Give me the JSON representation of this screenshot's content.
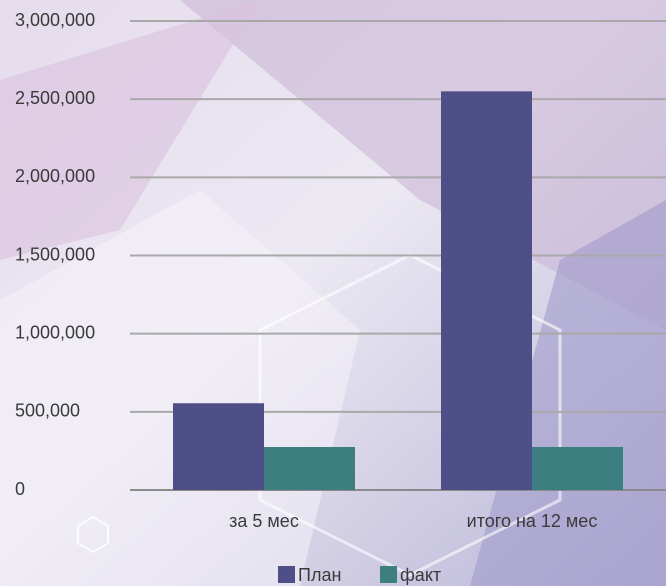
{
  "chart_data": {
    "type": "bar",
    "categories": [
      "за 5 мес",
      "итого на 12 мес"
    ],
    "series": [
      {
        "name": "План",
        "color": "#4f4f88",
        "values": [
          555000,
          2550000
        ]
      },
      {
        "name": "факт",
        "color": "#3d7f80",
        "values": [
          275000,
          275000
        ]
      }
    ],
    "ylim": [
      0,
      3000000
    ],
    "yticks": [
      0,
      {
        "value": 500000,
        "label": "500,000"
      },
      {
        "value": 1000000,
        "label": "1,000,000"
      },
      {
        "value": 1500000,
        "label": "1,500,000"
      },
      {
        "value": 2000000,
        "label": "2,000,000"
      },
      {
        "value": 2500000,
        "label": "2,500,000"
      },
      {
        "value": 3000000,
        "label": "3,000,000"
      }
    ],
    "grid": true,
    "legend": "bottom"
  }
}
